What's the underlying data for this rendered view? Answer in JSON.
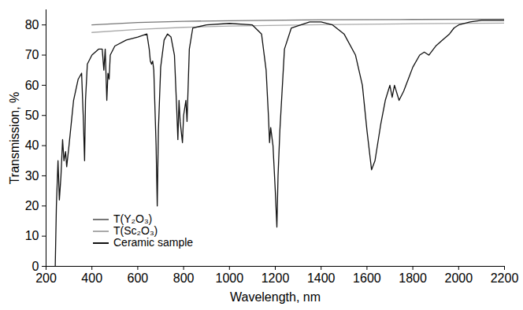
{
  "chart_data": {
    "type": "line",
    "x_label": "Wavelength, nm",
    "y_label": "Transmission, %",
    "xlim": [
      200,
      2200
    ],
    "xticks": [
      200,
      400,
      600,
      800,
      1000,
      1200,
      1400,
      1600,
      1800,
      2000,
      2200
    ],
    "ylim": [
      0,
      85
    ],
    "yticks": [
      0,
      10,
      20,
      30,
      40,
      50,
      60,
      70,
      80
    ],
    "grid": false,
    "legend": "lower left",
    "series": [
      {
        "name": "T(Y₂O₃)",
        "color": "#777777",
        "x": [
          400,
          600,
          800,
          1000,
          1400,
          1800,
          2200
        ],
        "values": [
          80,
          80.8,
          81.2,
          81.4,
          81.7,
          81.8,
          81.9
        ]
      },
      {
        "name": "T(Sc₂O₃)",
        "color": "#aaaaaa",
        "x": [
          400,
          600,
          800,
          1000,
          1400,
          1800,
          2200
        ],
        "values": [
          77.5,
          78.5,
          79.2,
          79.6,
          80.1,
          80.4,
          80.6
        ]
      },
      {
        "name": "Ceramic sample",
        "color": "#111111",
        "x": [
          240,
          245,
          252,
          258,
          265,
          272,
          278,
          285,
          290,
          300,
          320,
          340,
          355,
          362,
          368,
          372,
          380,
          400,
          430,
          445,
          452,
          458,
          465,
          470,
          475,
          480,
          500,
          550,
          600,
          640,
          650,
          655,
          660,
          665,
          670,
          680,
          685,
          690,
          700,
          715,
          730,
          745,
          760,
          770,
          775,
          780,
          785,
          795,
          800,
          810,
          815,
          825,
          840,
          900,
          1000,
          1100,
          1140,
          1160,
          1170,
          1175,
          1180,
          1190,
          1200,
          1207,
          1212,
          1220,
          1240,
          1270,
          1350,
          1400,
          1450,
          1500,
          1550,
          1580,
          1600,
          1620,
          1635,
          1660,
          1680,
          1700,
          1710,
          1720,
          1740,
          1760,
          1780,
          1800,
          1830,
          1850,
          1870,
          1900,
          1930,
          1960,
          1980,
          2000,
          2050,
          2100,
          2200
        ],
        "values": [
          0,
          20,
          35,
          22,
          30,
          42,
          35,
          38,
          33,
          40,
          55,
          62,
          64,
          50,
          35,
          55,
          67,
          70,
          72,
          72,
          65,
          72,
          55,
          64,
          62,
          70,
          73,
          75,
          76,
          77,
          72,
          68,
          67,
          68,
          65,
          40,
          20,
          45,
          66,
          75,
          77,
          76,
          70,
          52,
          42,
          55,
          48,
          41,
          50,
          55,
          48,
          72,
          79,
          80,
          80.5,
          80,
          77,
          65,
          50,
          41,
          46,
          40,
          25,
          13,
          30,
          45,
          72,
          79,
          81,
          81,
          80,
          77,
          70,
          60,
          45,
          32,
          35,
          47,
          55,
          60,
          56,
          60,
          55,
          58,
          62,
          66,
          70,
          71,
          70,
          73,
          75,
          77,
          79,
          80,
          81,
          81.5,
          81.5
        ]
      }
    ]
  }
}
